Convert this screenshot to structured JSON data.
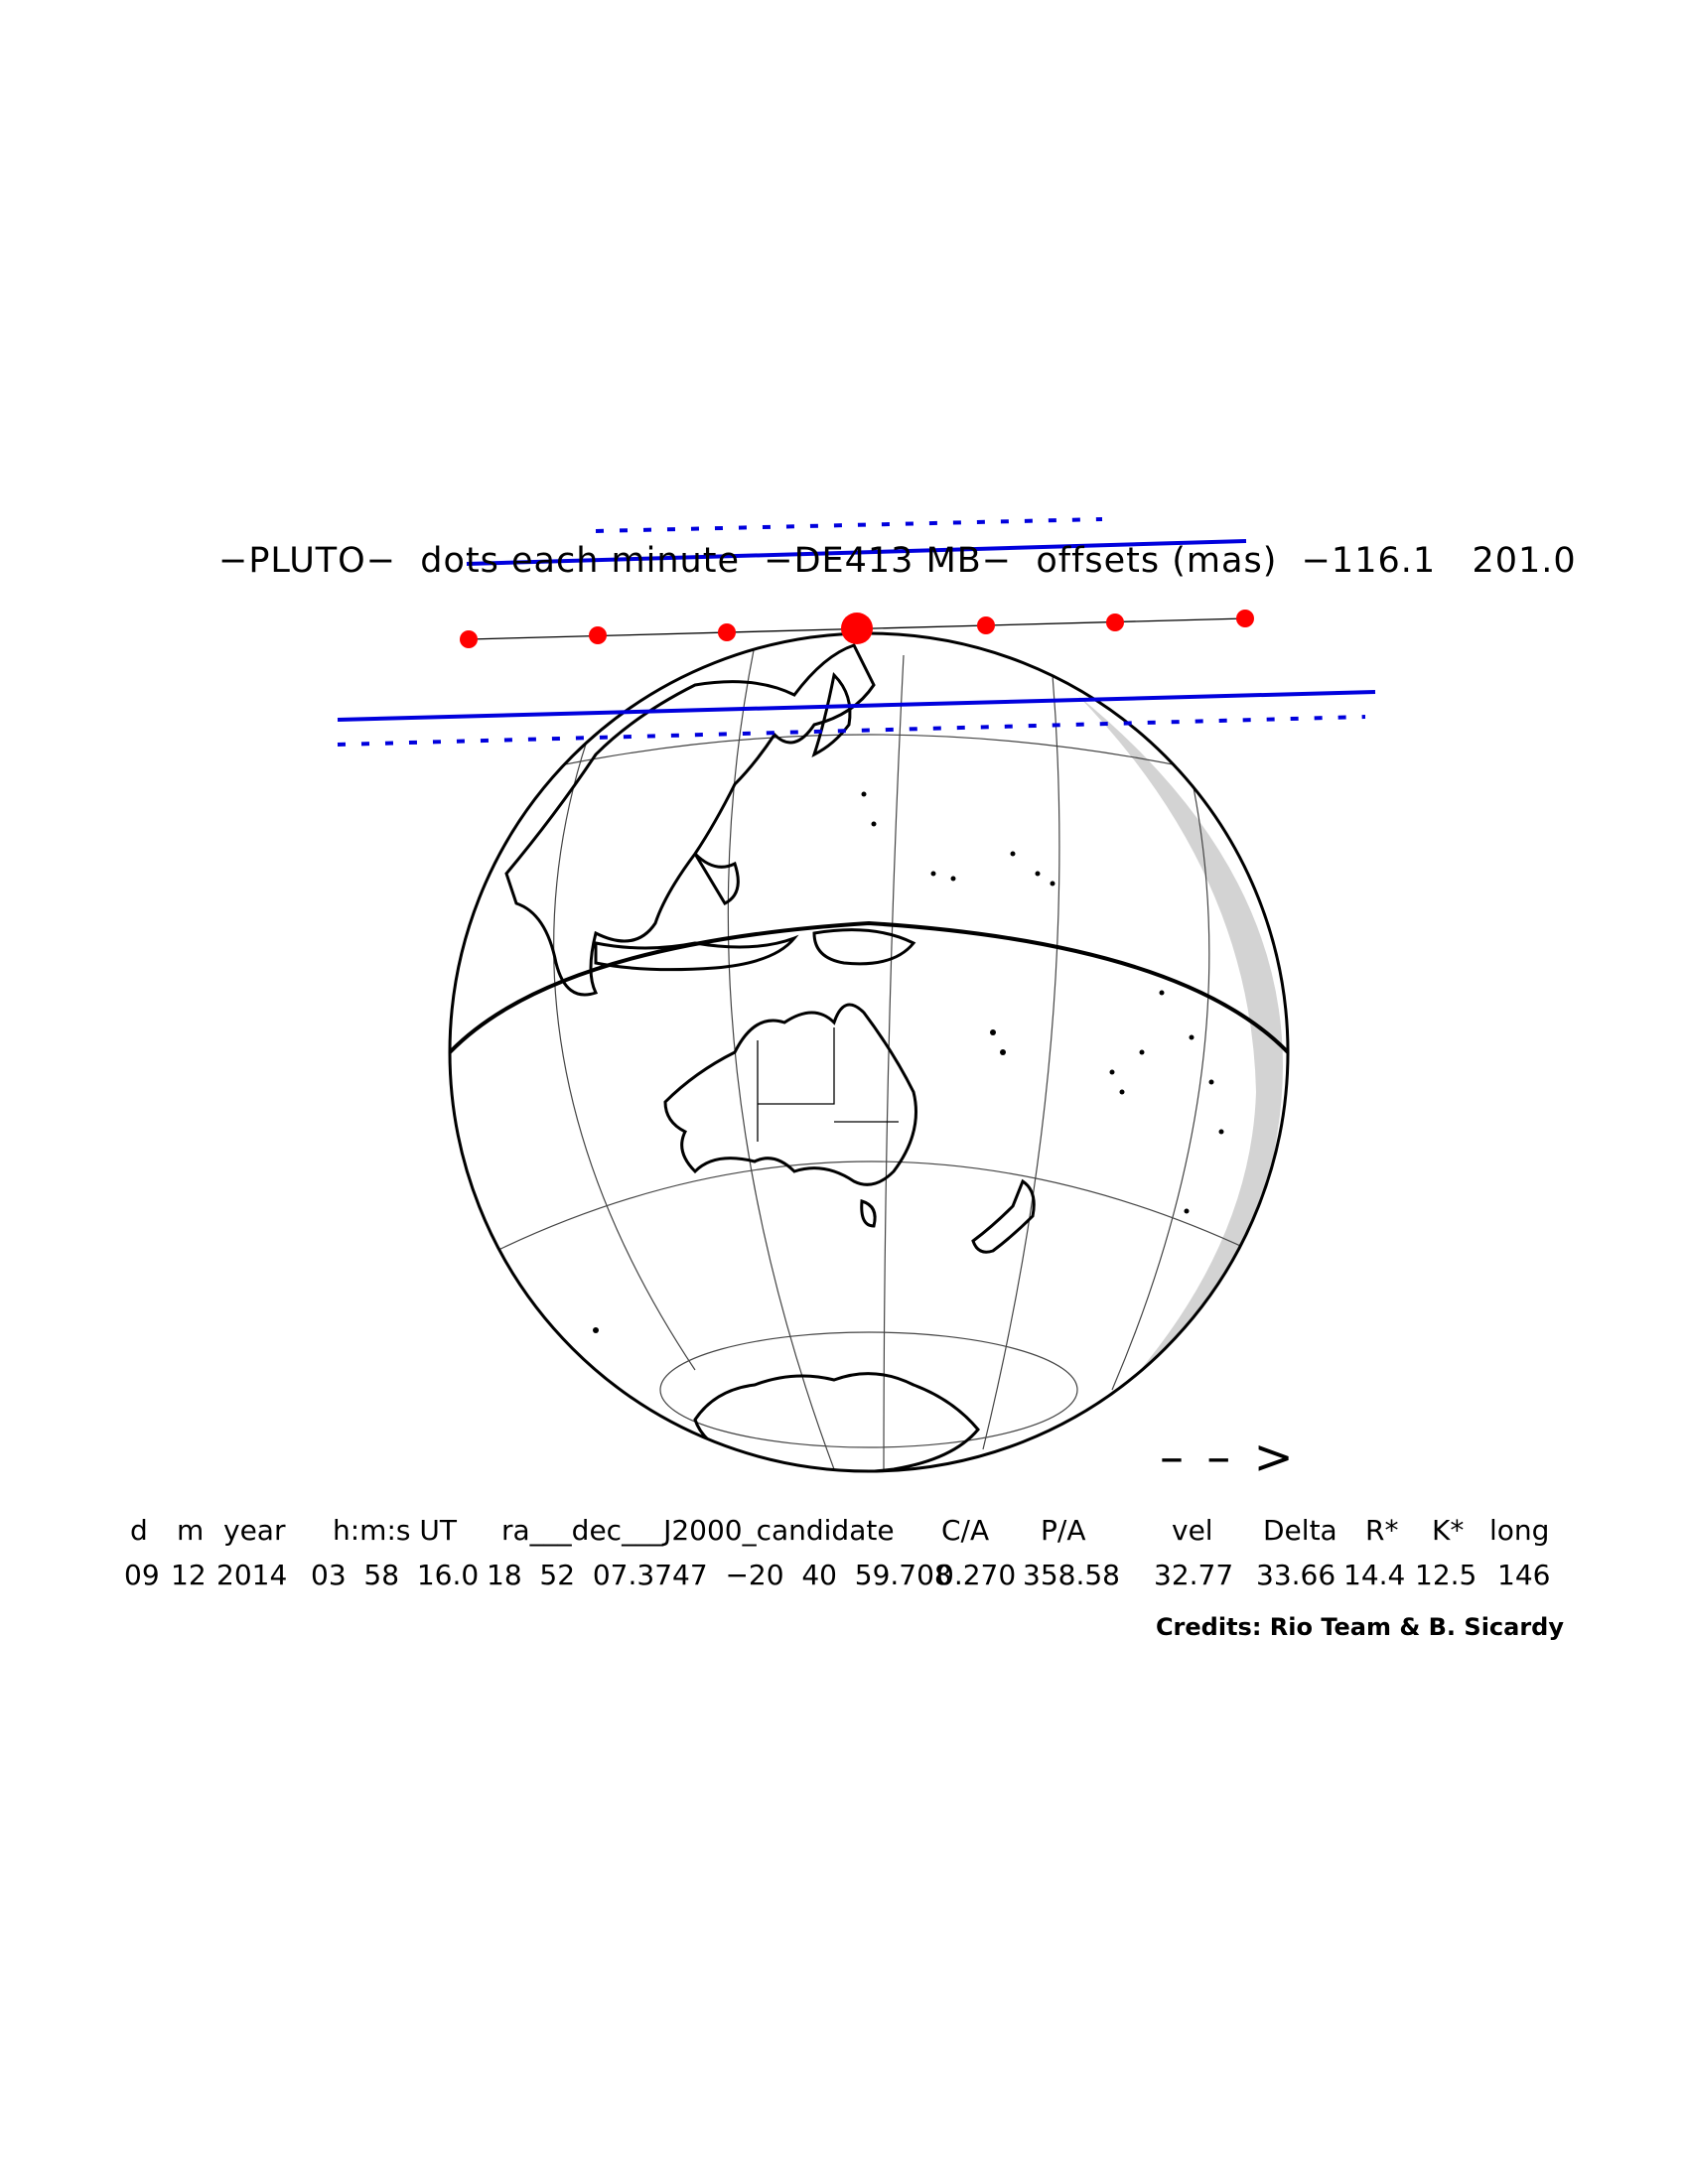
{
  "title": "−PLUTO−  dots each minute  −DE413 MB−  offsets (mas)  −116.1   201.0",
  "direction_arrow": "– – >",
  "table": {
    "headers": [
      "d",
      "m",
      "year",
      "h:m:s UT",
      "ra___dec___J2000_candidate",
      "C/A",
      "P/A",
      "vel",
      "Delta",
      "R*",
      "K*",
      "long"
    ],
    "values": [
      "09",
      "12",
      "2014",
      "03  58  16.0",
      "18  52  07.3747  −20  40  59.708",
      "0.270",
      "358.58",
      "32.77",
      "33.66",
      "14.4",
      "12.5",
      "146"
    ]
  },
  "credits": "Credits: Rio Team & B. Sicardy",
  "colors": {
    "shadow_path": "#0000dd",
    "occultation_dots": "#ff0000",
    "night_shading": "#d3d3d3",
    "outline": "#000000"
  },
  "legend": {
    "dots": "dots each minute",
    "offsets_mas": [
      -116.1,
      201.0
    ]
  }
}
